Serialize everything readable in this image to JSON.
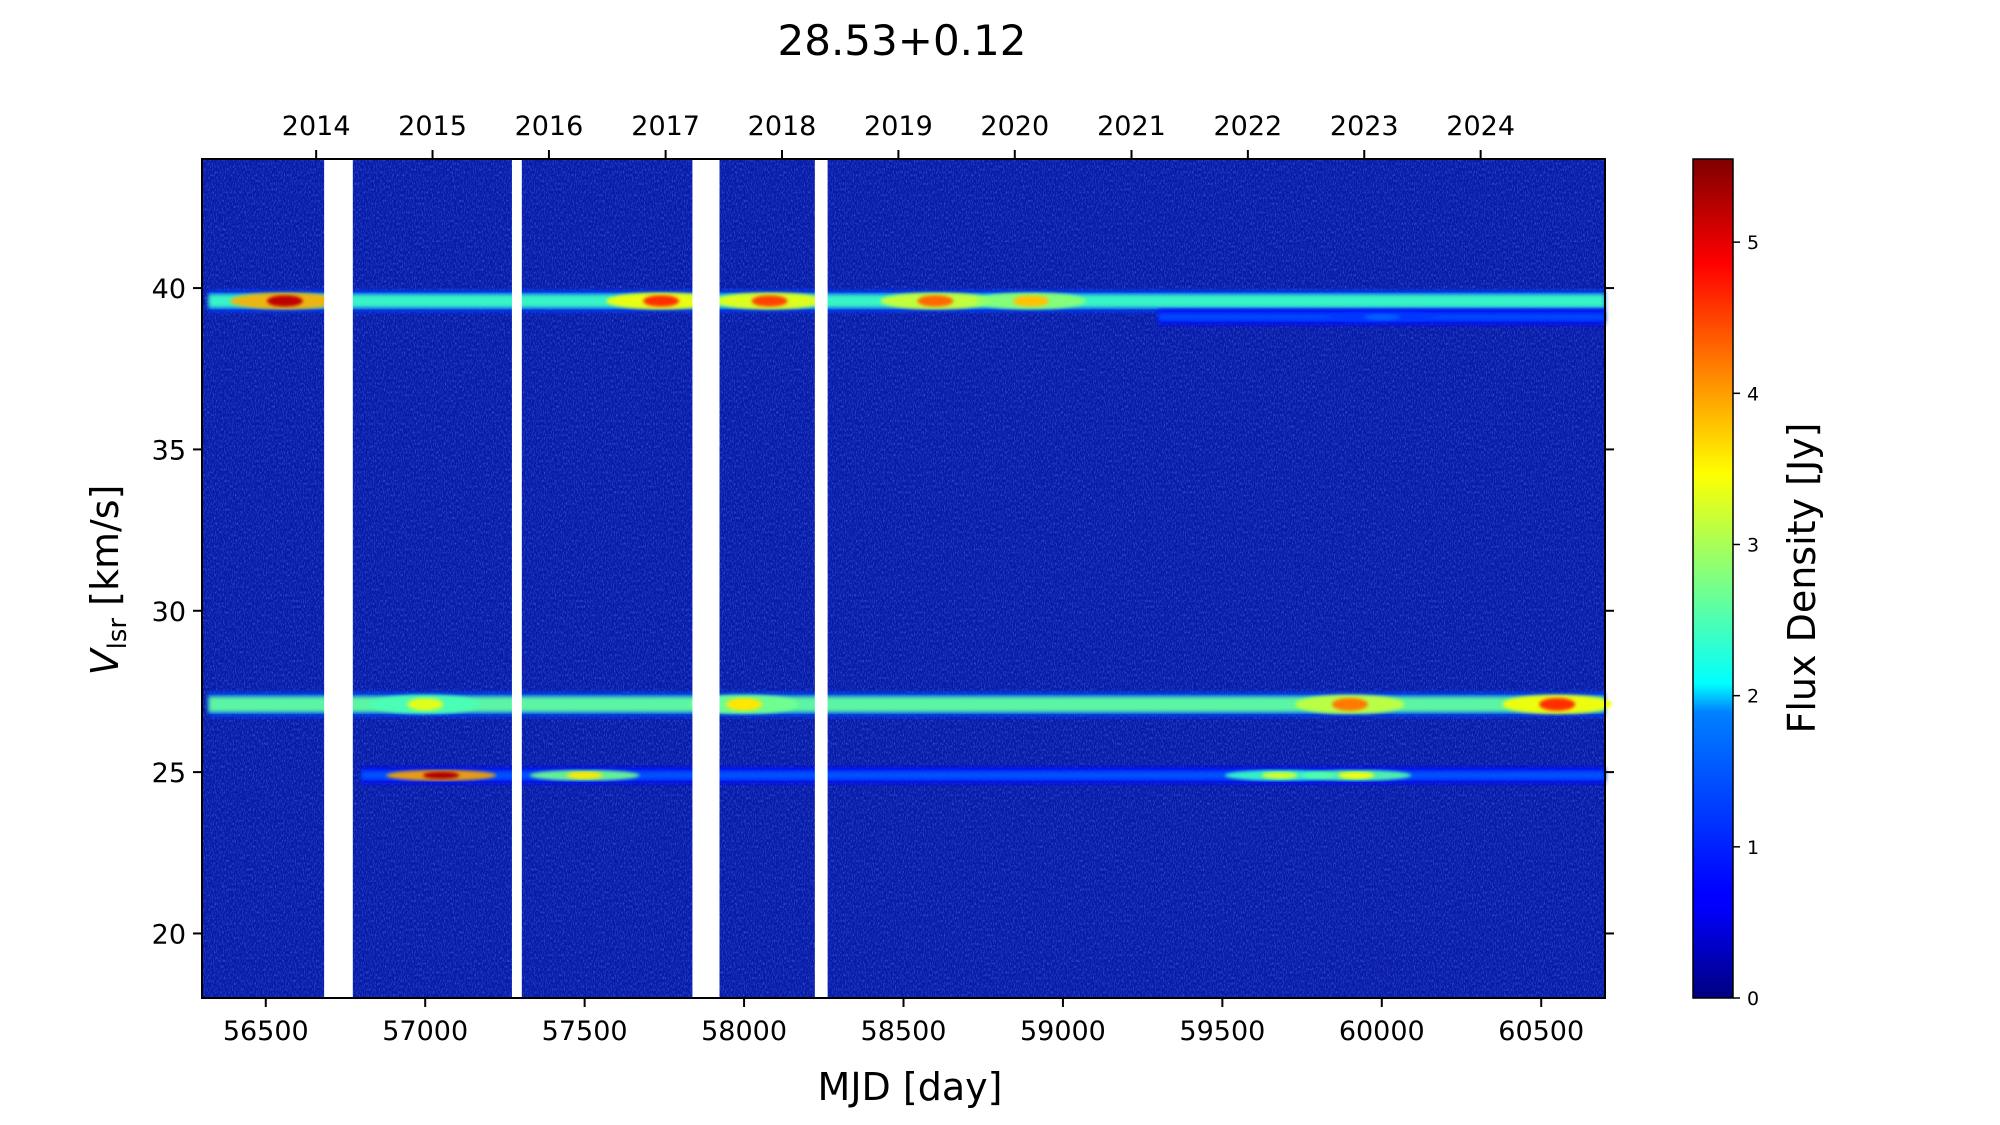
{
  "chart_data": {
    "type": "heatmap",
    "title": "28.53+0.12",
    "xlabel": "MJD [day]",
    "ylabel_main": "V",
    "ylabel_sub": "lsr",
    "ylabel_rest": " [km/s]",
    "colorbar_label": "Flux Density [Jy]",
    "colormap": "jet",
    "xlim": [
      56300,
      60700
    ],
    "ylim": [
      18,
      44
    ],
    "clim": [
      0,
      5.55
    ],
    "x_ticks": [
      56500,
      57000,
      57500,
      58000,
      58500,
      59000,
      59500,
      60000,
      60500
    ],
    "x_tick_labels": [
      "56500",
      "57000",
      "57500",
      "58000",
      "58500",
      "59000",
      "59500",
      "60000",
      "60500"
    ],
    "y_ticks": [
      20,
      25,
      30,
      35,
      40
    ],
    "y_tick_labels": [
      "20",
      "25",
      "30",
      "35",
      "40"
    ],
    "top_ticks_mjd": [
      56658,
      57023,
      57388,
      57754,
      58119,
      58484,
      58849,
      59215,
      59580,
      59945,
      60310
    ],
    "top_tick_labels": [
      "2014",
      "2015",
      "2016",
      "2017",
      "2018",
      "2019",
      "2020",
      "2021",
      "2022",
      "2023",
      "2024"
    ],
    "colorbar_ticks": [
      0,
      1,
      2,
      3,
      4,
      5
    ],
    "colorbar_tick_labels": [
      "0",
      "1",
      "2",
      "3",
      "4",
      "5"
    ],
    "data_gaps_mjd": [
      [
        56683,
        56773
      ],
      [
        57272,
        57303
      ],
      [
        57838,
        57923
      ],
      [
        58222,
        58262
      ]
    ],
    "emission_features": [
      {
        "velocity": 39.6,
        "mjd_range": [
          56320,
          60700
        ],
        "peaks": [
          {
            "mjd": 56560,
            "flux": 5.2
          },
          {
            "mjd": 57740,
            "flux": 4.6
          },
          {
            "mjd": 58080,
            "flux": 4.5
          },
          {
            "mjd": 58600,
            "flux": 4.3
          },
          {
            "mjd": 58900,
            "flux": 3.8
          }
        ]
      },
      {
        "velocity": 39.1,
        "mjd_range": [
          59300,
          60700
        ],
        "peaks": [
          {
            "mjd": 60000,
            "flux": 1.6
          }
        ]
      },
      {
        "velocity": 27.1,
        "mjd_range": [
          56320,
          60700
        ],
        "peaks": [
          {
            "mjd": 57000,
            "flux": 3.3
          },
          {
            "mjd": 58000,
            "flux": 3.6
          },
          {
            "mjd": 59900,
            "flux": 4.2
          },
          {
            "mjd": 60550,
            "flux": 4.6
          }
        ]
      },
      {
        "velocity": 24.9,
        "mjd_range": [
          56800,
          60700
        ],
        "peaks": [
          {
            "mjd": 57050,
            "flux": 5.3
          },
          {
            "mjd": 57500,
            "flux": 3.6
          },
          {
            "mjd": 59680,
            "flux": 3.2
          },
          {
            "mjd": 59920,
            "flux": 3.4
          }
        ]
      }
    ]
  }
}
